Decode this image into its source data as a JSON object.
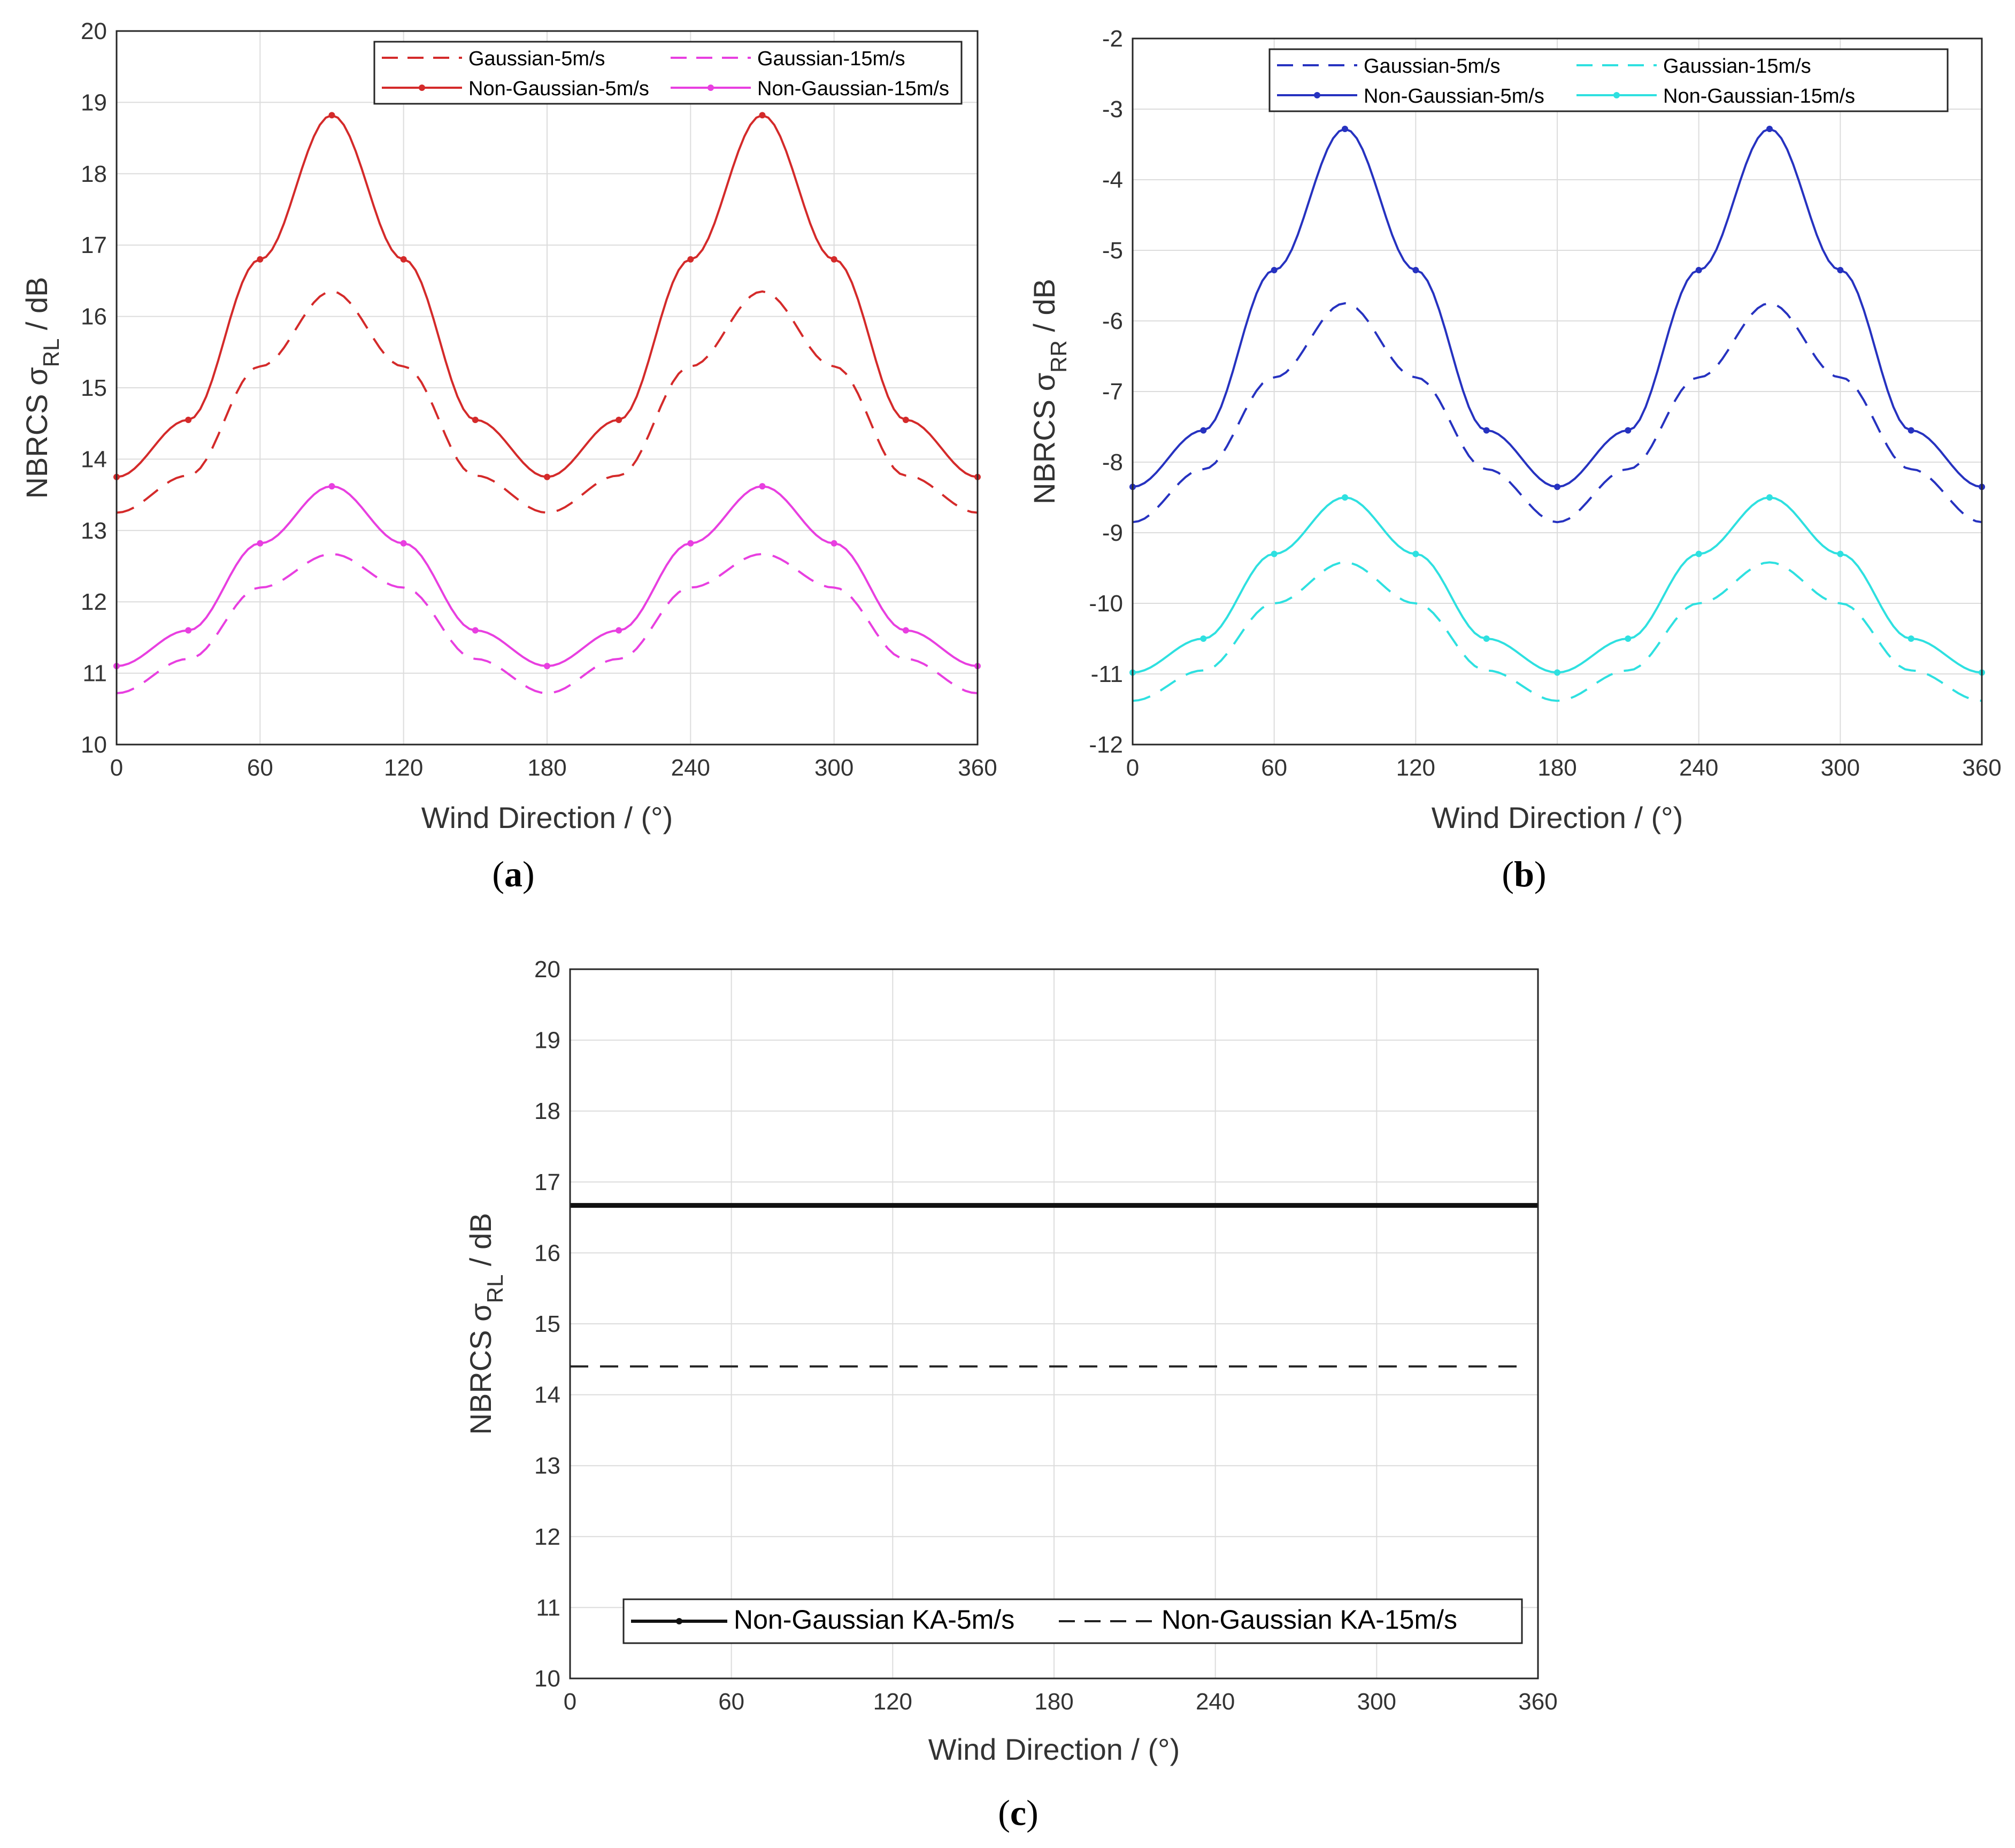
{
  "figure": {
    "captions": [
      "a",
      "b",
      "c"
    ]
  },
  "chart_data": [
    {
      "id": "a",
      "type": "line",
      "xlabel": "Wind Direction  / (°)",
      "ylabel_main": "NBRCS σ",
      "ylabel_sub": "RL",
      "ylabel_unit": " / dB",
      "xlim": [
        0,
        360
      ],
      "ylim": [
        10,
        20
      ],
      "xticks": [
        0,
        60,
        120,
        180,
        240,
        300,
        360
      ],
      "yticks": [
        10,
        11,
        12,
        13,
        14,
        15,
        16,
        17,
        18,
        19,
        20
      ],
      "x": [
        0,
        30,
        60,
        90,
        120,
        150,
        180,
        210,
        240,
        270,
        300,
        330,
        360
      ],
      "legend_columns": 2,
      "series": [
        {
          "name": "Gaussian-5m/s",
          "color": "#d42a2a",
          "style": "dashed",
          "marker": false,
          "values": [
            13.25,
            13.77,
            15.3,
            16.35,
            15.3,
            13.77,
            13.25,
            13.77,
            15.3,
            16.35,
            15.3,
            13.77,
            13.25
          ]
        },
        {
          "name": "Gaussian-15m/s",
          "color": "#e83fe0",
          "style": "dashed",
          "marker": false,
          "values": [
            10.72,
            11.2,
            12.2,
            12.67,
            12.2,
            11.2,
            10.72,
            11.2,
            12.2,
            12.67,
            12.2,
            11.2,
            10.72
          ]
        },
        {
          "name": "Non-Gaussian-5m/s",
          "color": "#d42a2a",
          "style": "solid",
          "marker": true,
          "values": [
            13.75,
            14.55,
            16.8,
            18.82,
            16.8,
            14.55,
            13.75,
            14.55,
            16.8,
            18.82,
            16.8,
            14.55,
            13.75
          ]
        },
        {
          "name": "Non-Gaussian-15m/s",
          "color": "#e83fe0",
          "style": "solid",
          "marker": true,
          "values": [
            11.1,
            11.6,
            12.82,
            13.62,
            12.82,
            11.6,
            11.1,
            11.6,
            12.82,
            13.62,
            12.82,
            11.6,
            11.1
          ]
        }
      ]
    },
    {
      "id": "b",
      "type": "line",
      "xlabel": "Wind Direction  / (°)",
      "ylabel_main": "NBRCS σ",
      "ylabel_sub": "RR",
      "ylabel_unit": " / dB",
      "xlim": [
        0,
        360
      ],
      "ylim": [
        -12,
        -2
      ],
      "xticks": [
        0,
        60,
        120,
        180,
        240,
        300,
        360
      ],
      "yticks": [
        -12,
        -11,
        -10,
        -9,
        -8,
        -7,
        -6,
        -5,
        -4,
        -3,
        -2
      ],
      "x": [
        0,
        30,
        60,
        90,
        120,
        150,
        180,
        210,
        240,
        270,
        300,
        330,
        360
      ],
      "legend_columns": 2,
      "series": [
        {
          "name": "Gaussian-5m/s",
          "color": "#2632c0",
          "style": "dashed",
          "marker": false,
          "values": [
            -8.85,
            -8.1,
            -6.8,
            -5.75,
            -6.8,
            -8.1,
            -8.85,
            -8.1,
            -6.8,
            -5.75,
            -6.8,
            -8.1,
            -8.85
          ]
        },
        {
          "name": "Gaussian-15m/s",
          "color": "#2ee0e0",
          "style": "dashed",
          "marker": false,
          "values": [
            -11.38,
            -10.95,
            -10.0,
            -9.42,
            -10.0,
            -10.95,
            -11.38,
            -10.95,
            -10.0,
            -9.42,
            -10.0,
            -10.95,
            -11.38
          ]
        },
        {
          "name": "Non-Gaussian-5m/s",
          "color": "#2632c0",
          "style": "solid",
          "marker": true,
          "values": [
            -8.35,
            -7.55,
            -5.28,
            -3.28,
            -5.28,
            -7.55,
            -8.35,
            -7.55,
            -5.28,
            -3.28,
            -5.28,
            -7.55,
            -8.35
          ]
        },
        {
          "name": "Non-Gaussian-15m/s",
          "color": "#2ee0e0",
          "style": "solid",
          "marker": true,
          "values": [
            -10.98,
            -10.5,
            -9.3,
            -8.5,
            -9.3,
            -10.5,
            -10.98,
            -10.5,
            -9.3,
            -8.5,
            -9.3,
            -10.5,
            -10.98
          ]
        }
      ]
    },
    {
      "id": "c",
      "type": "line",
      "xlabel": "Wind Direction / (°)",
      "ylabel_main": "NBRCS σ",
      "ylabel_sub": "RL",
      "ylabel_unit": " / dB",
      "xlim": [
        0,
        360
      ],
      "ylim": [
        10,
        20
      ],
      "xticks": [
        0,
        60,
        120,
        180,
        240,
        300,
        360
      ],
      "yticks": [
        10,
        11,
        12,
        13,
        14,
        15,
        16,
        17,
        18,
        19,
        20
      ],
      "x": [
        0,
        360
      ],
      "legend_columns": 2,
      "series": [
        {
          "name": "Non-Gaussian KA-5m/s",
          "color": "#111111",
          "style": "solid",
          "marker": true,
          "thick": true,
          "values": [
            16.67,
            16.67
          ]
        },
        {
          "name": "Non-Gaussian KA-15m/s",
          "color": "#222222",
          "style": "dashed",
          "marker": false,
          "values": [
            14.4,
            14.4
          ]
        }
      ]
    }
  ]
}
